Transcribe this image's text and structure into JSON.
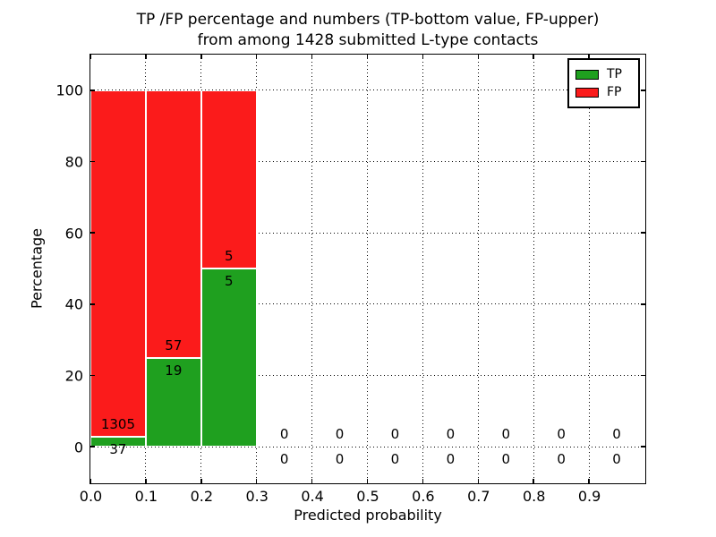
{
  "chart_data": {
    "type": "bar",
    "stacked": true,
    "title_line1": "TP /FP percentage and numbers (TP-bottom value, FP-upper)",
    "title_line2": "from among 1428 submitted L-type contacts",
    "xlabel": "Predicted probability",
    "ylabel": "Percentage",
    "total_submitted": 1428,
    "xlim": [
      0.0,
      1.0
    ],
    "ylim": [
      -10,
      110
    ],
    "x_ticks": [
      0.0,
      0.1,
      0.2,
      0.3,
      0.4,
      0.5,
      0.6,
      0.7,
      0.8,
      0.9
    ],
    "x_tick_labels": [
      "0.0",
      "0.1",
      "0.2",
      "0.3",
      "0.4",
      "0.5",
      "0.6",
      "0.7",
      "0.8",
      "0.9"
    ],
    "y_ticks": [
      0,
      20,
      40,
      60,
      80,
      100
    ],
    "y_tick_labels": [
      "0",
      "20",
      "40",
      "60",
      "80",
      "100"
    ],
    "grid_style": "dotted",
    "legend": {
      "position": "upper-right",
      "entries": [
        {
          "label": "TP",
          "color": "#1fa01f"
        },
        {
          "label": "FP",
          "color": "#fb1b1b"
        }
      ]
    },
    "bins": [
      {
        "range": [
          0.0,
          0.1
        ],
        "tp_count": 37,
        "fp_count": 1305,
        "tp_pct": 2.76,
        "fp_pct": 97.24
      },
      {
        "range": [
          0.1,
          0.2
        ],
        "tp_count": 19,
        "fp_count": 57,
        "tp_pct": 25.0,
        "fp_pct": 75.0
      },
      {
        "range": [
          0.2,
          0.3
        ],
        "tp_count": 5,
        "fp_count": 5,
        "tp_pct": 50.0,
        "fp_pct": 50.0
      },
      {
        "range": [
          0.3,
          0.4
        ],
        "tp_count": 0,
        "fp_count": 0,
        "tp_pct": 0,
        "fp_pct": 0
      },
      {
        "range": [
          0.4,
          0.5
        ],
        "tp_count": 0,
        "fp_count": 0,
        "tp_pct": 0,
        "fp_pct": 0
      },
      {
        "range": [
          0.5,
          0.6
        ],
        "tp_count": 0,
        "fp_count": 0,
        "tp_pct": 0,
        "fp_pct": 0
      },
      {
        "range": [
          0.6,
          0.7
        ],
        "tp_count": 0,
        "fp_count": 0,
        "tp_pct": 0,
        "fp_pct": 0
      },
      {
        "range": [
          0.7,
          0.8
        ],
        "tp_count": 0,
        "fp_count": 0,
        "tp_pct": 0,
        "fp_pct": 0
      },
      {
        "range": [
          0.8,
          0.9
        ],
        "tp_count": 0,
        "fp_count": 0,
        "tp_pct": 0,
        "fp_pct": 0
      },
      {
        "range": [
          0.9,
          1.0
        ],
        "tp_count": 0,
        "fp_count": 0,
        "tp_pct": 0,
        "fp_pct": 0
      }
    ]
  },
  "colors": {
    "tp_green": "#1fa01f",
    "fp_red": "#fb1b1b",
    "grid": "#000000",
    "axes": "#000000",
    "background": "#ffffff",
    "text": "#000000"
  }
}
